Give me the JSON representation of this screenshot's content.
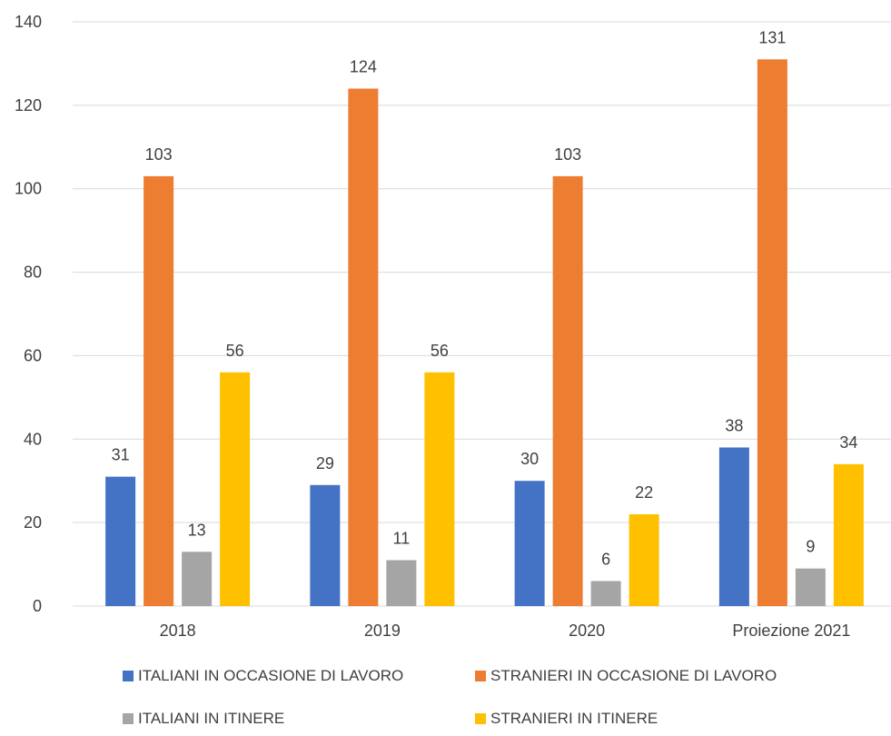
{
  "chart_data": {
    "type": "bar",
    "categories": [
      "2018",
      "2019",
      "2020",
      "Proiezione 2021"
    ],
    "series": [
      {
        "name": "ITALIANI IN OCCASIONE DI LAVORO",
        "color": "#4472C4",
        "values": [
          31,
          29,
          30,
          38
        ]
      },
      {
        "name": "STRANIERI IN OCCASIONE DI LAVORO",
        "color": "#ED7D31",
        "values": [
          103,
          124,
          103,
          131
        ]
      },
      {
        "name": "ITALIANI IN ITINERE",
        "color": "#A5A5A5",
        "values": [
          13,
          11,
          6,
          9
        ]
      },
      {
        "name": "STRANIERI IN ITINERE",
        "color": "#FFC000",
        "values": [
          56,
          56,
          22,
          34
        ]
      }
    ],
    "yticks": [
      0,
      20,
      40,
      60,
      80,
      100,
      120,
      140
    ],
    "ylim": [
      0,
      140
    ],
    "grid": true,
    "legend_position": "bottom",
    "title": "",
    "xlabel": "",
    "ylabel": ""
  }
}
